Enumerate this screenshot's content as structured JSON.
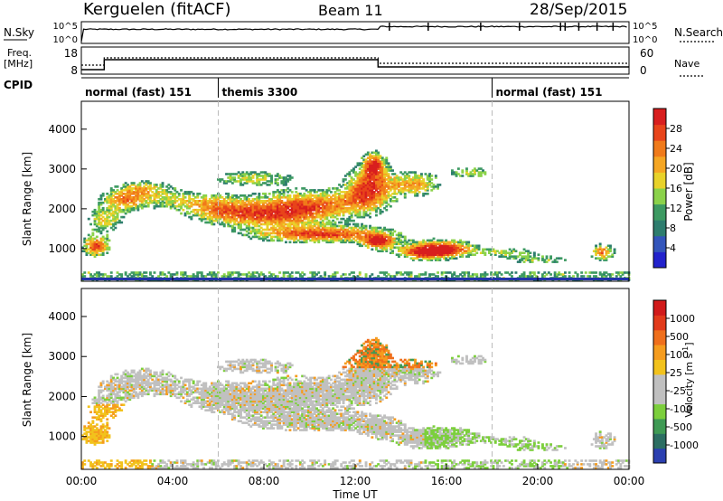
{
  "header": {
    "station": "Kerguelen (fitACF)",
    "beam": "Beam 11",
    "date": "28/Sep/2015"
  },
  "top_panel": {
    "left_label": "N.Sky",
    "left_tick_top": "10^5",
    "left_tick_bottom": "10^0",
    "right_label": "N.Search",
    "right_tick_top": "10^5",
    "right_tick_bottom": "10^0"
  },
  "freq_panel": {
    "left_label_1": "Freq.",
    "left_label_2": "[MHz]",
    "left_tick_top": "18",
    "left_tick_bottom": "8",
    "right_label": "Nave",
    "right_tick_top": "60",
    "right_tick_bottom": "0"
  },
  "cpid": {
    "label": "CPID",
    "modes": [
      {
        "text": "normal (fast) 151",
        "start_hour": 0
      },
      {
        "text": "themis 3300",
        "start_hour": 6
      },
      {
        "text": "normal (fast) 151",
        "start_hour": 18
      }
    ]
  },
  "chart_data": [
    {
      "type": "heatmap",
      "name": "power",
      "ylabel": "Slant Range [km]",
      "yticks": [
        "4000",
        "3000",
        "2000",
        "1000"
      ],
      "ylim": [
        180,
        4700
      ],
      "colorbar_label": "Power [dB]",
      "colorbar_ticks": [
        "28",
        "24",
        "20",
        "16",
        "12",
        "8",
        "4"
      ],
      "colorbar_colors": [
        "#2222cc",
        "#3355bb",
        "#2e7d6e",
        "#3d9a62",
        "#8bd24a",
        "#e8d22a",
        "#f5a623",
        "#f07a1a",
        "#e8441a",
        "#d81e1e"
      ]
    },
    {
      "type": "heatmap",
      "name": "velocity",
      "ylabel": "Slant Range [km]",
      "yticks": [
        "4000",
        "3000",
        "2000",
        "1000"
      ],
      "ylim": [
        180,
        4700
      ],
      "colorbar_label": "Velocity [m s^-1]",
      "colorbar_ticks": [
        "1000",
        "500",
        "100",
        "25",
        "-25",
        "-100",
        "-500",
        "-1000"
      ],
      "colorbar_colors": [
        "#2b3fb0",
        "#2c6e62",
        "#3f9a54",
        "#7ccf3c",
        "#c0c0c0",
        "#c0c0c0",
        "#f2c21c",
        "#f59c1e",
        "#ef6f1c",
        "#e23a1a",
        "#d11a1a"
      ]
    }
  ],
  "x_axis": {
    "ticks": [
      "00:00",
      "04:00",
      "08:00",
      "12:00",
      "16:00",
      "20:00",
      "00:00"
    ],
    "label": "Time UT",
    "range_hours": [
      0,
      24
    ]
  }
}
